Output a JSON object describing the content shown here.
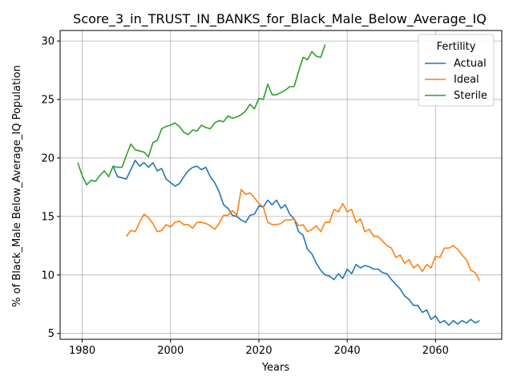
{
  "chart_data": {
    "type": "line",
    "title": "Score_3_in_TRUST_IN_BANKS_for_Black_Male_Below_Average_IQ",
    "xlabel": "Years",
    "ylabel": "% of Black_Male Below_Average_IQ Population",
    "xlim": [
      1975,
      2075
    ],
    "ylim": [
      4.5,
      30.9
    ],
    "xticks": [
      1980,
      2000,
      2020,
      2040,
      2060
    ],
    "yticks": [
      5,
      10,
      15,
      20,
      25,
      30
    ],
    "grid": true,
    "legend": {
      "title": "Fertility",
      "position": "top-right"
    },
    "series": [
      {
        "name": "Actual",
        "color": "#1f77b4",
        "x": [
          1987,
          1988,
          1989,
          1990,
          1991,
          1992,
          1993,
          1994,
          1995,
          1996,
          1997,
          1998,
          1999,
          2000,
          2001,
          2002,
          2003,
          2004,
          2005,
          2006,
          2007,
          2008,
          2009,
          2010,
          2011,
          2012,
          2013,
          2014,
          2015,
          2016,
          2017,
          2018,
          2019,
          2020,
          2021,
          2022,
          2023,
          2024,
          2025,
          2026,
          2027,
          2028,
          2029,
          2030,
          2031,
          2032,
          2033,
          2034,
          2035,
          2036,
          2037,
          2038,
          2039,
          2040,
          2041,
          2042,
          2043,
          2044,
          2045,
          2046,
          2047,
          2048,
          2049,
          2050,
          2051,
          2052,
          2053,
          2054,
          2055,
          2056,
          2057,
          2058,
          2059,
          2060,
          2061,
          2062,
          2063,
          2064,
          2065,
          2066,
          2067,
          2068,
          2069,
          2070
        ],
        "y": [
          19.3,
          18.4,
          18.3,
          18.2,
          19.0,
          19.8,
          19.3,
          19.6,
          19.2,
          19.6,
          18.9,
          19.1,
          18.2,
          17.9,
          17.6,
          17.8,
          18.4,
          18.9,
          19.2,
          19.3,
          19.0,
          19.2,
          18.4,
          17.9,
          17.1,
          16.0,
          15.7,
          15.1,
          15.0,
          14.7,
          14.5,
          15.1,
          15.2,
          15.9,
          15.8,
          16.4,
          16.0,
          16.4,
          15.7,
          16.0,
          15.2,
          14.8,
          13.7,
          13.4,
          12.2,
          11.8,
          11.0,
          10.4,
          10.0,
          9.9,
          9.6,
          10.1,
          9.7,
          10.5,
          10.1,
          10.9,
          10.6,
          10.8,
          10.7,
          10.5,
          10.5,
          10.2,
          10.1,
          9.6,
          9.2,
          8.8,
          8.2,
          7.9,
          7.4,
          7.4,
          6.8,
          7.0,
          6.2,
          6.5,
          5.9,
          6.1,
          5.7,
          6.1,
          5.8,
          6.1,
          5.9,
          6.2,
          5.9,
          6.1
        ]
      },
      {
        "name": "Ideal",
        "color": "#ff7f0e",
        "x": [
          1990,
          1991,
          1992,
          1993,
          1994,
          1995,
          1996,
          1997,
          1998,
          1999,
          2000,
          2001,
          2002,
          2003,
          2004,
          2005,
          2006,
          2007,
          2008,
          2009,
          2010,
          2011,
          2012,
          2013,
          2014,
          2015,
          2016,
          2017,
          2018,
          2019,
          2020,
          2021,
          2022,
          2023,
          2024,
          2025,
          2026,
          2027,
          2028,
          2029,
          2030,
          2031,
          2032,
          2033,
          2034,
          2035,
          2036,
          2037,
          2038,
          2039,
          2040,
          2041,
          2042,
          2043,
          2044,
          2045,
          2046,
          2047,
          2048,
          2049,
          2050,
          2051,
          2052,
          2053,
          2054,
          2055,
          2056,
          2057,
          2058,
          2059,
          2060,
          2061,
          2062,
          2063,
          2064,
          2065,
          2066,
          2067,
          2068,
          2069,
          2070
        ],
        "y": [
          13.3,
          13.8,
          13.7,
          14.5,
          15.2,
          14.9,
          14.4,
          13.7,
          13.8,
          14.3,
          14.1,
          14.5,
          14.6,
          14.3,
          14.3,
          14.0,
          14.5,
          14.5,
          14.4,
          14.2,
          13.9,
          14.4,
          15.1,
          15.1,
          15.5,
          15.1,
          17.3,
          16.9,
          17.0,
          16.6,
          16.1,
          15.8,
          14.5,
          14.3,
          14.3,
          14.4,
          14.7,
          14.7,
          14.8,
          14.2,
          14.3,
          13.7,
          13.9,
          14.2,
          13.7,
          14.5,
          14.5,
          15.6,
          15.4,
          16.1,
          15.4,
          15.6,
          14.5,
          14.8,
          13.7,
          13.9,
          13.3,
          13.3,
          12.9,
          12.5,
          12.3,
          11.5,
          11.7,
          11.0,
          11.3,
          10.6,
          10.9,
          10.3,
          10.9,
          10.6,
          11.6,
          11.5,
          12.3,
          12.3,
          12.5,
          12.2,
          11.7,
          11.3,
          10.4,
          10.2,
          9.5
        ]
      },
      {
        "name": "Sterile",
        "color": "#2ca02c",
        "x": [
          1979,
          1980,
          1981,
          1982,
          1983,
          1984,
          1985,
          1986,
          1987,
          1988,
          1989,
          1990,
          1991,
          1992,
          1993,
          1994,
          1995,
          1996,
          1997,
          1998,
          1999,
          2000,
          2001,
          2002,
          2003,
          2004,
          2005,
          2006,
          2007,
          2008,
          2009,
          2010,
          2011,
          2012,
          2013,
          2014,
          2015,
          2016,
          2017,
          2018,
          2019,
          2020,
          2021,
          2022,
          2023,
          2024,
          2025,
          2026,
          2027,
          2028,
          2029,
          2030,
          2031,
          2032,
          2033,
          2034,
          2035
        ],
        "y": [
          19.6,
          18.5,
          17.7,
          18.1,
          18.0,
          18.5,
          18.9,
          18.4,
          19.3,
          19.2,
          19.2,
          20.2,
          21.2,
          20.7,
          20.6,
          20.5,
          20.1,
          21.3,
          21.5,
          22.5,
          22.7,
          22.8,
          23.0,
          22.7,
          22.2,
          22.0,
          22.4,
          22.3,
          22.8,
          22.6,
          22.5,
          23.0,
          23.2,
          23.1,
          23.6,
          23.4,
          23.5,
          23.7,
          24.0,
          24.6,
          24.2,
          25.1,
          25.0,
          26.3,
          25.4,
          25.4,
          25.6,
          25.8,
          26.1,
          26.1,
          27.4,
          28.6,
          28.4,
          29.1,
          28.7,
          28.6,
          29.7
        ]
      }
    ]
  }
}
